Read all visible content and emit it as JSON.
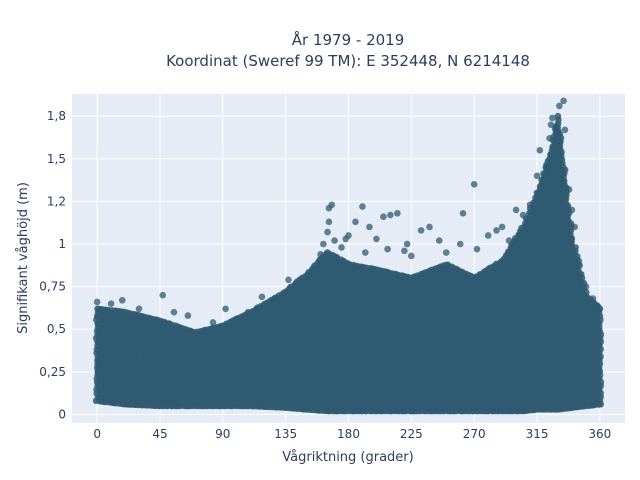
{
  "chart_data": {
    "type": "scatter",
    "title_line1": "År 1979 - 2019",
    "title_line2": "Koordinat (Sweref 99 TM): E 352448, N 6214148",
    "xlabel": "Vågriktning (grader)",
    "ylabel": "Signifikant våghöjd (m)",
    "xlim": [
      -18,
      378
    ],
    "ylim": [
      -0.05,
      1.88
    ],
    "xticks": [
      0,
      45,
      90,
      135,
      180,
      225,
      270,
      315,
      360
    ],
    "xtick_labels": [
      "0",
      "45",
      "90",
      "135",
      "180",
      "225",
      "270",
      "315",
      "360"
    ],
    "yticks": [
      0,
      0.25,
      0.5,
      0.75,
      1,
      1.25,
      1.5,
      1.75
    ],
    "ytick_labels": [
      "0",
      "0,25",
      "0,5",
      "0,75",
      "1",
      "1,2",
      "1,5",
      "1,8"
    ],
    "grid": true,
    "marker_color": "#2f5a72",
    "plot_bg": "#e5ecf6",
    "envelope": [
      {
        "dir": 0,
        "lo": 0.08,
        "hi": 0.62
      },
      {
        "dir": 20,
        "lo": 0.06,
        "hi": 0.6
      },
      {
        "dir": 45,
        "lo": 0.05,
        "hi": 0.55
      },
      {
        "dir": 70,
        "lo": 0.05,
        "hi": 0.48
      },
      {
        "dir": 90,
        "lo": 0.05,
        "hi": 0.52
      },
      {
        "dir": 110,
        "lo": 0.05,
        "hi": 0.6
      },
      {
        "dir": 135,
        "lo": 0.04,
        "hi": 0.72
      },
      {
        "dir": 150,
        "lo": 0.03,
        "hi": 0.82
      },
      {
        "dir": 165,
        "lo": 0.02,
        "hi": 0.95
      },
      {
        "dir": 180,
        "lo": 0.02,
        "hi": 0.88
      },
      {
        "dir": 200,
        "lo": 0.02,
        "hi": 0.85
      },
      {
        "dir": 225,
        "lo": 0.02,
        "hi": 0.8
      },
      {
        "dir": 250,
        "lo": 0.02,
        "hi": 0.88
      },
      {
        "dir": 270,
        "lo": 0.02,
        "hi": 0.8
      },
      {
        "dir": 290,
        "lo": 0.02,
        "hi": 0.9
      },
      {
        "dir": 305,
        "lo": 0.02,
        "hi": 1.1
      },
      {
        "dir": 315,
        "lo": 0.03,
        "hi": 1.3
      },
      {
        "dir": 325,
        "lo": 0.03,
        "hi": 1.55
      },
      {
        "dir": 330,
        "lo": 0.03,
        "hi": 1.75
      },
      {
        "dir": 340,
        "lo": 0.04,
        "hi": 1.05
      },
      {
        "dir": 350,
        "lo": 0.05,
        "hi": 0.7
      },
      {
        "dir": 360,
        "lo": 0.06,
        "hi": 0.62
      }
    ],
    "points": [
      {
        "dir": 0,
        "hs": 0.66
      },
      {
        "dir": 10,
        "hs": 0.65
      },
      {
        "dir": 18,
        "hs": 0.67
      },
      {
        "dir": 30,
        "hs": 0.62
      },
      {
        "dir": 47,
        "hs": 0.7
      },
      {
        "dir": 55,
        "hs": 0.6
      },
      {
        "dir": 65,
        "hs": 0.58
      },
      {
        "dir": 83,
        "hs": 0.54
      },
      {
        "dir": 92,
        "hs": 0.62
      },
      {
        "dir": 100,
        "hs": 0.56
      },
      {
        "dir": 108,
        "hs": 0.6
      },
      {
        "dir": 118,
        "hs": 0.69
      },
      {
        "dir": 125,
        "hs": 0.67
      },
      {
        "dir": 137,
        "hs": 0.79
      },
      {
        "dir": 145,
        "hs": 0.78
      },
      {
        "dir": 155,
        "hs": 0.82
      },
      {
        "dir": 160,
        "hs": 0.94
      },
      {
        "dir": 162,
        "hs": 1.0
      },
      {
        "dir": 165,
        "hs": 1.07
      },
      {
        "dir": 166,
        "hs": 1.13
      },
      {
        "dir": 166,
        "hs": 1.21
      },
      {
        "dir": 168,
        "hs": 1.23
      },
      {
        "dir": 170,
        "hs": 1.02
      },
      {
        "dir": 175,
        "hs": 0.98
      },
      {
        "dir": 178,
        "hs": 1.03
      },
      {
        "dir": 180,
        "hs": 1.05
      },
      {
        "dir": 185,
        "hs": 1.13
      },
      {
        "dir": 190,
        "hs": 1.22
      },
      {
        "dir": 192,
        "hs": 0.95
      },
      {
        "dir": 195,
        "hs": 1.1
      },
      {
        "dir": 200,
        "hs": 1.03
      },
      {
        "dir": 205,
        "hs": 1.16
      },
      {
        "dir": 208,
        "hs": 0.97
      },
      {
        "dir": 210,
        "hs": 1.17
      },
      {
        "dir": 215,
        "hs": 1.18
      },
      {
        "dir": 220,
        "hs": 0.96
      },
      {
        "dir": 222,
        "hs": 1.0
      },
      {
        "dir": 225,
        "hs": 0.93
      },
      {
        "dir": 232,
        "hs": 1.08
      },
      {
        "dir": 238,
        "hs": 1.1
      },
      {
        "dir": 245,
        "hs": 1.02
      },
      {
        "dir": 250,
        "hs": 0.95
      },
      {
        "dir": 260,
        "hs": 1.0
      },
      {
        "dir": 262,
        "hs": 1.18
      },
      {
        "dir": 270,
        "hs": 1.35
      },
      {
        "dir": 272,
        "hs": 0.97
      },
      {
        "dir": 280,
        "hs": 1.05
      },
      {
        "dir": 286,
        "hs": 1.08
      },
      {
        "dir": 290,
        "hs": 1.1
      },
      {
        "dir": 295,
        "hs": 1.02
      },
      {
        "dir": 300,
        "hs": 1.2
      },
      {
        "dir": 305,
        "hs": 1.17
      },
      {
        "dir": 310,
        "hs": 1.23
      },
      {
        "dir": 315,
        "hs": 1.4
      },
      {
        "dir": 317,
        "hs": 1.55
      },
      {
        "dir": 320,
        "hs": 1.38
      },
      {
        "dir": 322,
        "hs": 1.45
      },
      {
        "dir": 324,
        "hs": 1.62
      },
      {
        "dir": 325,
        "hs": 1.7
      },
      {
        "dir": 326,
        "hs": 1.74
      },
      {
        "dir": 328,
        "hs": 1.68
      },
      {
        "dir": 330,
        "hs": 1.66
      },
      {
        "dir": 331,
        "hs": 1.81
      },
      {
        "dir": 334,
        "hs": 1.84
      },
      {
        "dir": 335,
        "hs": 1.67
      },
      {
        "dir": 338,
        "hs": 1.32
      },
      {
        "dir": 340,
        "hs": 1.2
      },
      {
        "dir": 342,
        "hs": 1.1
      },
      {
        "dir": 345,
        "hs": 0.9
      },
      {
        "dir": 350,
        "hs": 0.75
      },
      {
        "dir": 355,
        "hs": 0.68
      },
      {
        "dir": 358,
        "hs": 0.64
      }
    ]
  }
}
